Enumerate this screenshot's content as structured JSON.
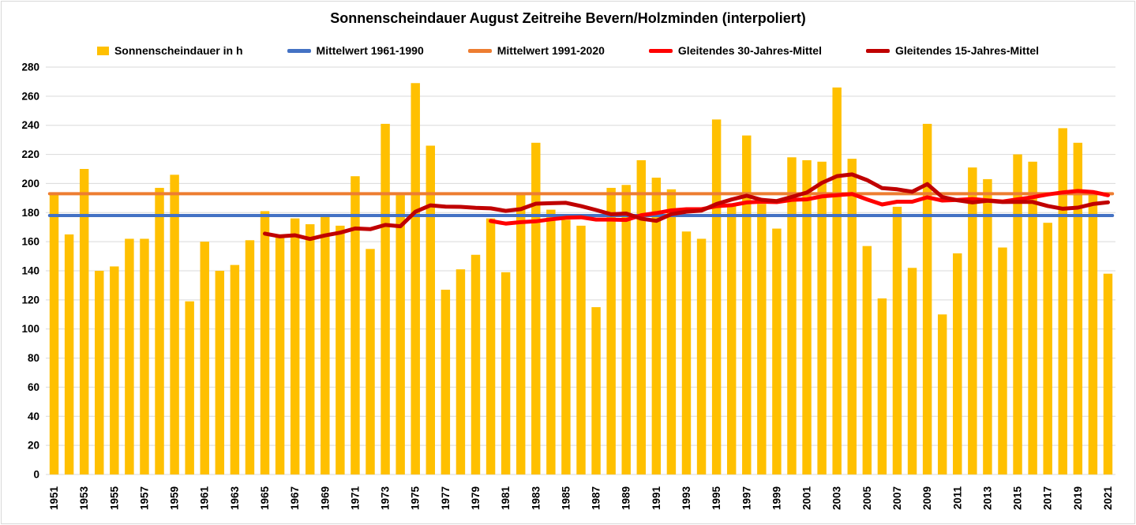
{
  "title": "Sonnenscheindauer August Zeitreihe Bevern/Holzminden (interpoliert)",
  "legend": [
    {
      "label": "Sonnenscheindauer in h",
      "marker": "square",
      "color": "#FFC000"
    },
    {
      "label": "Mittelwert 1961-1990",
      "marker": "line",
      "color": "#4472C4"
    },
    {
      "label": "Mittelwert 1991-2020",
      "marker": "line",
      "color": "#ED7D31"
    },
    {
      "label": "Gleitendes 30-Jahres-Mittel",
      "marker": "line",
      "color": "#FF0000"
    },
    {
      "label": "Gleitendes 15-Jahres-Mittel",
      "marker": "line",
      "color": "#C00000"
    }
  ],
  "colors": {
    "bar": "#FFC000",
    "mean_1961_1990": "#4472C4",
    "mean_1991_2020": "#ED7D31",
    "rolling_30": "#FF0000",
    "rolling_15": "#C00000",
    "gridline": "#D9D9D9",
    "text": "#000000",
    "background": "#FFFFFF"
  },
  "chart_data": {
    "type": "bar",
    "title": "Sonnenscheindauer August Zeitreihe Bevern/Holzminden (interpoliert)",
    "xlabel": "",
    "ylabel": "",
    "ylim": [
      0,
      280
    ],
    "y_tick_step": 20,
    "y_tick_labels": [
      0,
      20,
      40,
      60,
      80,
      100,
      120,
      140,
      160,
      180,
      200,
      220,
      240,
      260,
      280
    ],
    "x_tick_labels": [
      1951,
      1953,
      1955,
      1957,
      1959,
      1961,
      1963,
      1965,
      1967,
      1969,
      1971,
      1973,
      1975,
      1977,
      1979,
      1981,
      1983,
      1985,
      1987,
      1989,
      1991,
      1993,
      1995,
      1997,
      1999,
      2001,
      2003,
      2005,
      2007,
      2009,
      2011,
      2013,
      2015,
      2017,
      2019,
      2021
    ],
    "x_label_interval": 2,
    "grid": "horizontal",
    "legend_position": "top",
    "categories_start": 1951,
    "categories_end": 2021,
    "categories": [
      1951,
      1952,
      1953,
      1954,
      1955,
      1956,
      1957,
      1958,
      1959,
      1960,
      1961,
      1962,
      1963,
      1964,
      1965,
      1966,
      1967,
      1968,
      1969,
      1970,
      1971,
      1972,
      1973,
      1974,
      1975,
      1976,
      1977,
      1978,
      1979,
      1980,
      1981,
      1982,
      1983,
      1984,
      1985,
      1986,
      1987,
      1988,
      1989,
      1990,
      1991,
      1992,
      1993,
      1994,
      1995,
      1996,
      1997,
      1998,
      1999,
      2000,
      2001,
      2002,
      2003,
      2004,
      2005,
      2006,
      2007,
      2008,
      2009,
      2010,
      2011,
      2012,
      2013,
      2014,
      2015,
      2016,
      2017,
      2018,
      2019,
      2020,
      2021
    ],
    "series": [
      {
        "name": "Sonnenscheindauer in h",
        "type": "bar",
        "color": "#FFC000",
        "values": [
          193,
          165,
          210,
          140,
          143,
          162,
          162,
          197,
          206,
          119,
          160,
          140,
          144,
          161,
          181,
          165,
          176,
          172,
          177,
          171,
          205,
          155,
          241,
          192,
          269,
          226,
          127,
          141,
          151,
          176,
          139,
          194,
          228,
          182,
          175,
          171,
          115,
          197,
          199,
          216,
          204,
          196,
          167,
          162,
          244,
          185,
          233,
          186,
          169,
          218,
          216,
          215,
          266,
          217,
          157,
          121,
          184,
          142,
          241,
          110,
          152,
          211,
          203,
          156,
          220,
          215,
          173,
          238,
          228,
          195,
          138
        ]
      },
      {
        "name": "Mittelwert 1961-1990",
        "type": "constant-line",
        "color": "#4472C4",
        "value": 178
      },
      {
        "name": "Mittelwert 1991-2020",
        "type": "constant-line",
        "color": "#ED7D31",
        "value": 193
      },
      {
        "name": "Gleitendes 30-Jahres-Mittel",
        "type": "trailing-mean",
        "color": "#FF0000",
        "window": 30,
        "start_year": 1980
      },
      {
        "name": "Gleitendes 15-Jahres-Mittel",
        "type": "trailing-mean",
        "color": "#C00000",
        "window": 15,
        "start_year": 1965
      }
    ]
  }
}
